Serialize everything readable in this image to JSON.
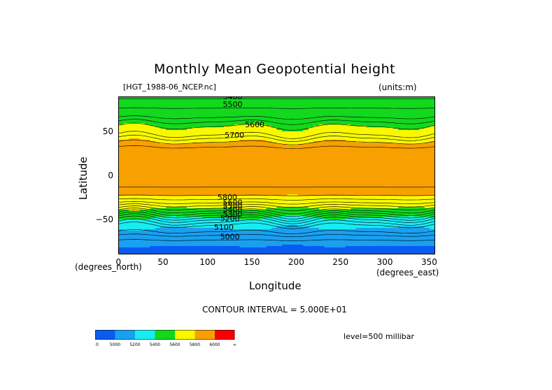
{
  "chart_data": {
    "type": "heatmap",
    "title": "Monthly Mean Geopotential height",
    "file_label": "[HGT_1988-06_NCEP.nc]",
    "units_label": "(units:m)",
    "xlabel": "Longitude",
    "ylabel": "Latitude",
    "x_unit_label": "(degrees_east)",
    "y_unit_label": "(degrees_north)",
    "xlim": [
      0,
      357.5
    ],
    "ylim": [
      -90,
      90
    ],
    "x_ticks": [
      0,
      50,
      100,
      150,
      200,
      250,
      300,
      350
    ],
    "y_ticks": [
      50,
      0,
      -50
    ],
    "y_tick_labels": [
      "50",
      "0",
      "−50"
    ],
    "contour_interval_text": "CONTOUR INTERVAL = 5.000E+01",
    "level_text": "level=500 millibar",
    "contour_labels": [
      "5400",
      "5500",
      "5600",
      "5700",
      "5800",
      "5600",
      "5500",
      "5400",
      "5300",
      "5200",
      "5100",
      "5000"
    ],
    "colorbar": {
      "colors": [
        "#0a5cf0",
        "#1aa0f0",
        "#18ecf0",
        "#12d81e",
        "#f8f800",
        "#f8a000",
        "#f80000"
      ],
      "labels": [
        "0",
        "5000",
        "5200",
        "5400",
        "5600",
        "5800",
        "6000",
        "∞"
      ]
    },
    "zonal_profile": {
      "lat": [
        90,
        80,
        70,
        60,
        50,
        40,
        30,
        20,
        10,
        0,
        -10,
        -20,
        -30,
        -40,
        -50,
        -60,
        -70,
        -80,
        -90
      ],
      "height_m": [
        5560,
        5520,
        5460,
        5560,
        5650,
        5780,
        5870,
        5880,
        5870,
        5860,
        5860,
        5830,
        5720,
        5560,
        5360,
        5200,
        5080,
        5000,
        4990
      ]
    }
  }
}
